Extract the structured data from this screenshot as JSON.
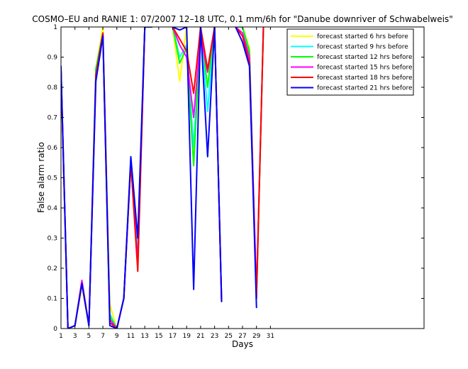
{
  "chart_data": {
    "type": "line",
    "title": "COSMO–EU and RANIE 1: 07/2007 12–18 UTC, 0.1 mm/6h for \"Danube downriver of Schwabelweis\"",
    "xlabel": "Days",
    "ylabel": "False alarm ratio",
    "xlim": [
      1,
      53
    ],
    "ylim": [
      0,
      1
    ],
    "xticks": [
      1,
      3,
      5,
      7,
      9,
      11,
      13,
      15,
      17,
      19,
      21,
      23,
      25,
      27,
      29,
      31
    ],
    "xtick_labels": [
      "1",
      "3",
      "5",
      "7",
      "9",
      "11",
      "13",
      "15",
      "17",
      "19",
      "21",
      "23",
      "25",
      "27",
      "29",
      "31"
    ],
    "yticks": [
      0,
      0.1,
      0.2,
      0.3,
      0.4,
      0.5,
      0.6,
      0.7,
      0.8,
      0.9,
      1
    ],
    "ytick_labels": [
      "0",
      "0.1",
      "0.2",
      "0.3",
      "0.4",
      "0.5",
      "0.6",
      "0.7",
      "0.8",
      "0.9",
      "1"
    ],
    "grid": false,
    "legend_position": "top-right",
    "x": [
      1,
      2,
      3,
      4,
      5,
      6,
      7,
      8,
      9,
      10,
      11,
      12,
      13,
      14,
      15,
      16,
      17,
      18,
      19,
      20,
      21,
      22,
      23,
      24,
      25,
      26,
      27,
      28,
      29,
      30,
      31
    ],
    "series": [
      {
        "name": "forecast started 6 hrs before",
        "color": "#ffff00",
        "values": [
          0.85,
          0,
          0.01,
          0.14,
          0.01,
          0.86,
          1,
          0.08,
          0,
          0.1,
          0.56,
          0.26,
          1,
          1,
          null,
          null,
          1,
          0.82,
          1,
          0.54,
          1,
          0.8,
          1,
          0.09,
          null,
          1,
          1,
          0.93,
          0.1,
          1,
          null
        ]
      },
      {
        "name": "forecast started 9 hrs before",
        "color": "#00ffff",
        "values": [
          0.86,
          0,
          0.01,
          0.15,
          0.01,
          0.86,
          0.98,
          0.05,
          0,
          0.1,
          0.56,
          0.24,
          1,
          1,
          null,
          null,
          1,
          0.9,
          0.94,
          0.6,
          1,
          0.72,
          1,
          0.09,
          null,
          1,
          1,
          0.91,
          0.1,
          1,
          null
        ]
      },
      {
        "name": "forecast started 12 hrs before",
        "color": "#00ff00",
        "values": [
          0.85,
          0,
          0.01,
          0.15,
          0.01,
          0.86,
          0.98,
          0.04,
          0,
          0.1,
          0.55,
          0.22,
          1,
          1,
          null,
          null,
          1,
          0.88,
          0.93,
          0.54,
          1,
          0.8,
          1,
          0.09,
          null,
          1,
          1,
          0.92,
          0.1,
          1,
          null
        ]
      },
      {
        "name": "forecast started 15 hrs before",
        "color": "#ff00ff",
        "values": [
          0.86,
          0,
          0.01,
          0.16,
          0.01,
          0.84,
          0.98,
          0.03,
          0,
          0.1,
          0.55,
          0.22,
          1,
          1,
          null,
          null,
          1,
          0.94,
          0.9,
          0.7,
          0.97,
          0.85,
          1,
          0.09,
          null,
          1,
          0.98,
          0.9,
          0.12,
          1,
          null
        ]
      },
      {
        "name": "forecast started 18 hrs before",
        "color": "#ff0000",
        "values": [
          0.86,
          0,
          0.01,
          0.15,
          0.01,
          0.84,
          0.98,
          0.02,
          0,
          0.1,
          0.55,
          0.19,
          1,
          1,
          null,
          null,
          1,
          0.96,
          0.92,
          0.78,
          1,
          0.86,
          1,
          0.09,
          null,
          1,
          0.97,
          0.88,
          0.1,
          1,
          null
        ]
      },
      {
        "name": "forecast started 21 hrs before",
        "color": "#0000ff",
        "values": [
          0.87,
          0,
          0.01,
          0.15,
          0.01,
          0.82,
          0.97,
          0.01,
          0,
          0.1,
          0.57,
          0.3,
          1,
          1,
          null,
          null,
          1,
          0.99,
          1,
          0.13,
          1,
          0.57,
          1,
          0.09,
          null,
          1,
          0.95,
          0.87,
          0.07,
          null,
          null
        ]
      }
    ]
  }
}
